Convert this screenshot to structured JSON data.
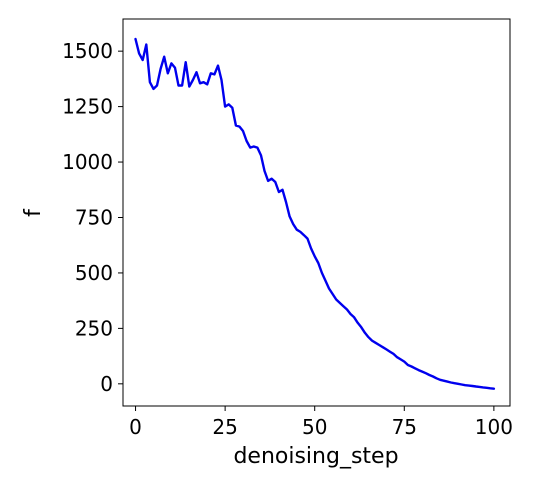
{
  "chart_data": {
    "type": "line",
    "title": "",
    "xlabel": "denoising_step",
    "ylabel": "f",
    "xlim": [
      -3.5,
      104.5
    ],
    "ylim": [
      -100,
      1645
    ],
    "xticks": [
      0,
      25,
      50,
      75,
      100
    ],
    "xtick_labels": [
      "0",
      "25",
      "50",
      "75",
      "100"
    ],
    "yticks": [
      0,
      250,
      500,
      750,
      1000,
      1250,
      1500
    ],
    "ytick_labels": [
      "0",
      "250",
      "500",
      "750",
      "1000",
      "1250",
      "1500"
    ],
    "grid": false,
    "legend": "none",
    "series": [
      {
        "color": "#0000ee",
        "x": [
          0,
          1,
          2,
          3,
          4,
          5,
          6,
          7,
          8,
          9,
          10,
          11,
          12,
          13,
          14,
          15,
          16,
          17,
          18,
          19,
          20,
          21,
          22,
          23,
          24,
          25,
          26,
          27,
          28,
          29,
          30,
          31,
          32,
          33,
          34,
          35,
          36,
          37,
          38,
          39,
          40,
          41,
          42,
          43,
          44,
          45,
          46,
          47,
          48,
          49,
          50,
          51,
          52,
          53,
          54,
          55,
          56,
          57,
          58,
          59,
          60,
          61,
          62,
          63,
          64,
          65,
          66,
          67,
          68,
          69,
          70,
          71,
          72,
          73,
          74,
          75,
          76,
          77,
          78,
          79,
          80,
          81,
          82,
          83,
          84,
          85,
          86,
          87,
          88,
          89,
          90,
          91,
          92,
          93,
          94,
          95,
          96,
          97,
          98,
          99,
          100
        ],
        "y": [
          1555,
          1490,
          1460,
          1530,
          1360,
          1330,
          1345,
          1420,
          1475,
          1400,
          1445,
          1425,
          1345,
          1345,
          1450,
          1340,
          1370,
          1405,
          1355,
          1360,
          1350,
          1400,
          1395,
          1435,
          1370,
          1250,
          1260,
          1245,
          1165,
          1160,
          1140,
          1095,
          1065,
          1070,
          1065,
          1030,
          960,
          915,
          925,
          910,
          865,
          875,
          820,
          755,
          720,
          695,
          685,
          670,
          655,
          610,
          575,
          545,
          500,
          465,
          430,
          405,
          380,
          365,
          350,
          335,
          315,
          300,
          275,
          255,
          230,
          210,
          195,
          185,
          175,
          165,
          155,
          145,
          135,
          120,
          110,
          100,
          85,
          78,
          70,
          62,
          55,
          48,
          40,
          33,
          25,
          18,
          14,
          10,
          6,
          3,
          0,
          -3,
          -6,
          -8,
          -10,
          -12,
          -14,
          -16,
          -18,
          -20,
          -22
        ]
      }
    ]
  }
}
